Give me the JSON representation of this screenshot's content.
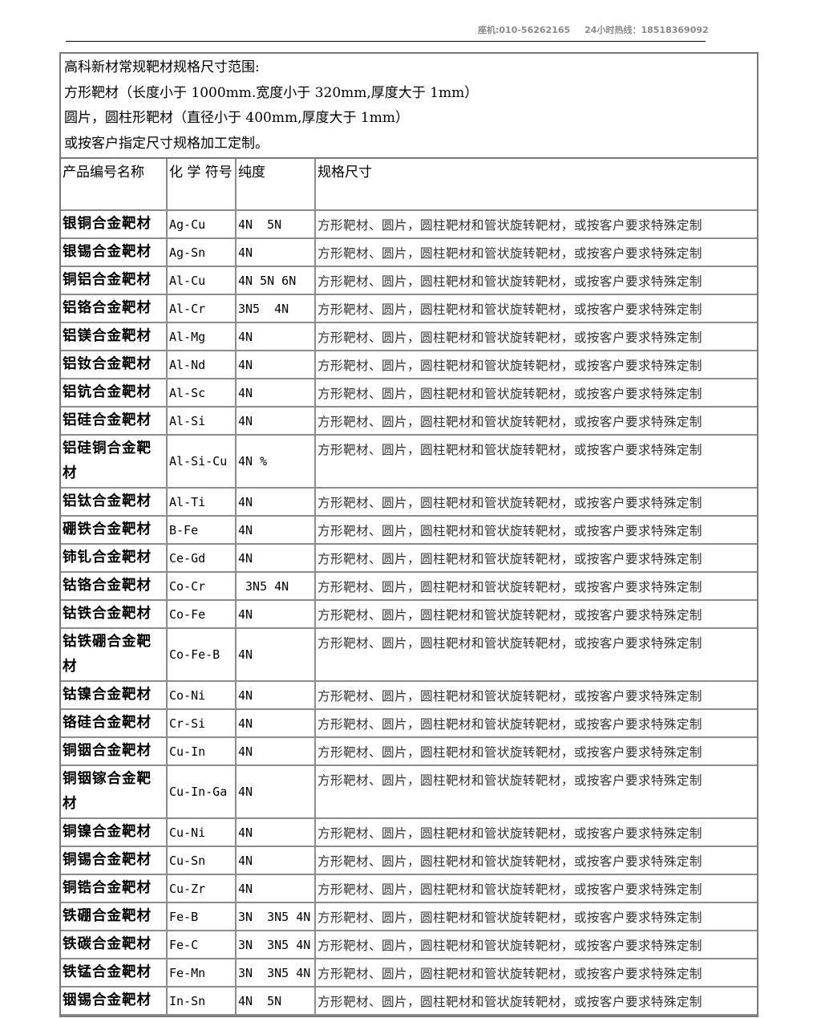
{
  "header": {
    "landline": "座机:010-56262165",
    "hotline": "24小时热线：18518369092"
  },
  "intro": {
    "line1": "高科新材常规靶材规格尺寸范围:",
    "line2": "方形靶材（长度小于 1000mm.宽度小于 320mm,厚度大于 1mm）",
    "line3": "圆片，圆柱形靶材（直径小于 400mm,厚度大于 1mm）",
    "line4": "或按客户指定尺寸规格加工定制。"
  },
  "table": {
    "headers": {
      "name": "产品编号名称",
      "symbol": "化 学 符号",
      "purity": "纯度",
      "spec": "规格尺寸"
    },
    "rows": [
      {
        "name": "银铜合金靶材",
        "symbol": "Ag-Cu",
        "purity": "4N  5N",
        "spec": "方形靶材、圆片，圆柱靶材和管状旋转靶材，或按客户要求特殊定制"
      },
      {
        "name": "银锡合金靶材",
        "symbol": "Ag-Sn",
        "purity": "4N",
        "spec": "方形靶材、圆片，圆柱靶材和管状旋转靶材，或按客户要求特殊定制"
      },
      {
        "name": "铜铝合金靶材",
        "symbol": "Al-Cu",
        "purity": "4N 5N 6N",
        "spec": "方形靶材、圆片，圆柱靶材和管状旋转靶材，或按客户要求特殊定制"
      },
      {
        "name": "铝铬合金靶材",
        "symbol": "Al-Cr",
        "purity": "3N5  4N",
        "spec": "方形靶材、圆片，圆柱靶材和管状旋转靶材，或按客户要求特殊定制"
      },
      {
        "name": "铝镁合金靶材",
        "symbol": "Al-Mg",
        "purity": "4N",
        "spec": "方形靶材、圆片，圆柱靶材和管状旋转靶材，或按客户要求特殊定制"
      },
      {
        "name": "铝钕合金靶材",
        "symbol": "Al-Nd",
        "purity": "4N",
        "spec": "方形靶材、圆片，圆柱靶材和管状旋转靶材，或按客户要求特殊定制"
      },
      {
        "name": "铝钪合金靶材",
        "symbol": "Al-Sc",
        "purity": "4N",
        "spec": "方形靶材、圆片，圆柱靶材和管状旋转靶材，或按客户要求特殊定制"
      },
      {
        "name": "铝硅合金靶材",
        "symbol": "Al-Si",
        "purity": "4N",
        "spec": "方形靶材、圆片，圆柱靶材和管状旋转靶材，或按客户要求特殊定制"
      },
      {
        "name": "铝硅铜合金靶材",
        "symbol": "Al-Si-Cu",
        "purity": "4N %",
        "spec": "方形靶材、圆片，圆柱靶材和管状旋转靶材，或按客户要求特殊定制",
        "tall": true
      },
      {
        "name": "铝钛合金靶材",
        "symbol": "Al-Ti",
        "purity": "4N",
        "spec": "方形靶材、圆片，圆柱靶材和管状旋转靶材，或按客户要求特殊定制"
      },
      {
        "name": "硼铁合金靶材",
        "symbol": "B-Fe",
        "purity": "4N",
        "spec": "方形靶材、圆片，圆柱靶材和管状旋转靶材，或按客户要求特殊定制"
      },
      {
        "name": "铈钆合金靶材",
        "symbol": "Ce-Gd",
        "purity": "4N",
        "spec": "方形靶材、圆片，圆柱靶材和管状旋转靶材，或按客户要求特殊定制"
      },
      {
        "name": "钴铬合金靶材",
        "symbol": "Co-Cr",
        "purity": " 3N5 4N",
        "spec": "方形靶材、圆片，圆柱靶材和管状旋转靶材，或按客户要求特殊定制"
      },
      {
        "name": "钴铁合金靶材",
        "symbol": "Co-Fe",
        "purity": "4N",
        "spec": "方形靶材、圆片，圆柱靶材和管状旋转靶材，或按客户要求特殊定制"
      },
      {
        "name": "钴铁硼合金靶材",
        "symbol": "Co-Fe-B",
        "purity": "4N",
        "spec": "方形靶材、圆片，圆柱靶材和管状旋转靶材，或按客户要求特殊定制",
        "tall": true
      },
      {
        "name": "钴镍合金靶材",
        "symbol": "Co-Ni",
        "purity": "4N",
        "spec": "方形靶材、圆片，圆柱靶材和管状旋转靶材，或按客户要求特殊定制"
      },
      {
        "name": "铬硅合金靶材",
        "symbol": "Cr-Si",
        "purity": "4N",
        "spec": "方形靶材、圆片，圆柱靶材和管状旋转靶材，或按客户要求特殊定制"
      },
      {
        "name": "铜铟合金靶材",
        "symbol": "Cu-In",
        "purity": "4N",
        "spec": "方形靶材、圆片，圆柱靶材和管状旋转靶材，或按客户要求特殊定制"
      },
      {
        "name": "铜铟镓合金靶材",
        "symbol": "Cu-In-Ga",
        "purity": "4N",
        "spec": "方形靶材、圆片，圆柱靶材和管状旋转靶材，或按客户要求特殊定制",
        "tall": true
      },
      {
        "name": "铜镍合金靶材",
        "symbol": "Cu-Ni",
        "purity": "4N",
        "spec": "方形靶材、圆片，圆柱靶材和管状旋转靶材，或按客户要求特殊定制"
      },
      {
        "name": "铜锡合金靶材",
        "symbol": "Cu-Sn",
        "purity": "4N",
        "spec": "方形靶材、圆片，圆柱靶材和管状旋转靶材，或按客户要求特殊定制"
      },
      {
        "name": "铜锆合金靶材",
        "symbol": "Cu-Zr",
        "purity": "4N",
        "spec": "方形靶材、圆片，圆柱靶材和管状旋转靶材，或按客户要求特殊定制"
      },
      {
        "name": "铁硼合金靶材",
        "symbol": "Fe-B",
        "purity": "3N  3N5 4N",
        "spec": "方形靶材、圆片，圆柱靶材和管状旋转靶材，或按客户要求特殊定制"
      },
      {
        "name": "铁碳合金靶材",
        "symbol": "Fe-C",
        "purity": "3N  3N5 4N",
        "spec": "方形靶材、圆片，圆柱靶材和管状旋转靶材，或按客户要求特殊定制"
      },
      {
        "name": "铁锰合金靶材",
        "symbol": "Fe-Mn",
        "purity": "3N  3N5 4N",
        "spec": "方形靶材、圆片，圆柱靶材和管状旋转靶材，或按客户要求特殊定制"
      },
      {
        "name": "铟锡合金靶材",
        "symbol": "In-Sn",
        "purity": "4N  5N",
        "spec": "方形靶材、圆片，圆柱靶材和管状旋转靶材，或按客户要求特殊定制"
      }
    ]
  }
}
